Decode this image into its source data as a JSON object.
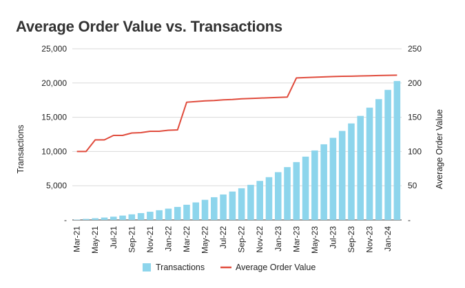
{
  "chart_data": {
    "type": "bar",
    "title": "Average Order Value vs. Transactions",
    "categories": [
      "Mar-21",
      "Apr-21",
      "May-21",
      "Jun-21",
      "Jul-21",
      "Aug-21",
      "Sep-21",
      "Oct-21",
      "Nov-21",
      "Dec-21",
      "Jan-22",
      "Feb-22",
      "Mar-22",
      "Apr-22",
      "May-22",
      "Jun-22",
      "Jul-22",
      "Aug-22",
      "Sep-22",
      "Oct-22",
      "Nov-22",
      "Dec-22",
      "Jan-23",
      "Feb-23",
      "Mar-23",
      "Apr-23",
      "May-23",
      "Jun-23",
      "Jul-23",
      "Aug-23",
      "Sep-23",
      "Oct-23",
      "Nov-23",
      "Dec-23",
      "Jan-24",
      "Feb-24"
    ],
    "x_tick_labels": [
      "Mar-21",
      "May-21",
      "Jul-21",
      "Sep-21",
      "Nov-21",
      "Jan-22",
      "Mar-22",
      "May-22",
      "Jul-22",
      "Sep-22",
      "Nov-22",
      "Jan-23",
      "Mar-23",
      "May-23",
      "Jul-23",
      "Sep-23",
      "Nov-23",
      "Jan-24"
    ],
    "series": [
      {
        "name": "Transactions",
        "type": "bar",
        "axis": "left",
        "color": "#8dd5ec",
        "values": [
          50,
          150,
          250,
          350,
          480,
          640,
          820,
          1000,
          1200,
          1420,
          1650,
          1900,
          2220,
          2560,
          2940,
          3320,
          3720,
          4150,
          4630,
          5130,
          5700,
          6250,
          6980,
          7720,
          8450,
          9250,
          10150,
          11050,
          12000,
          13000,
          14100,
          15200,
          16400,
          17650,
          19000,
          20300
        ]
      },
      {
        "name": "Average Order Value",
        "type": "line",
        "axis": "right",
        "color": "#e04a3b",
        "values": [
          100,
          100,
          117,
          117,
          123.5,
          123.5,
          127,
          127.5,
          129.5,
          129.5,
          131,
          131.5,
          172,
          173,
          174,
          174.5,
          175.5,
          176,
          177,
          177.5,
          178,
          178.5,
          179,
          179.5,
          207.5,
          208,
          208.5,
          209,
          209.5,
          209.8,
          210,
          210.3,
          210.6,
          211,
          211.2,
          211.5
        ]
      }
    ],
    "left_axis": {
      "label": "Transactions",
      "min": 0,
      "max": 25000,
      "ticks": [
        0,
        5000,
        10000,
        15000,
        20000,
        25000
      ],
      "tick_labels": [
        "-",
        "5,000",
        "10,000",
        "15,000",
        "20,000",
        "25,000"
      ]
    },
    "right_axis": {
      "label": "Average Order Value",
      "min": 0,
      "max": 250,
      "ticks": [
        0,
        50,
        100,
        150,
        200,
        250
      ],
      "tick_labels": [
        "-",
        "50",
        "100",
        "150",
        "200",
        "250"
      ]
    },
    "grid": true,
    "legend_position": "bottom"
  }
}
